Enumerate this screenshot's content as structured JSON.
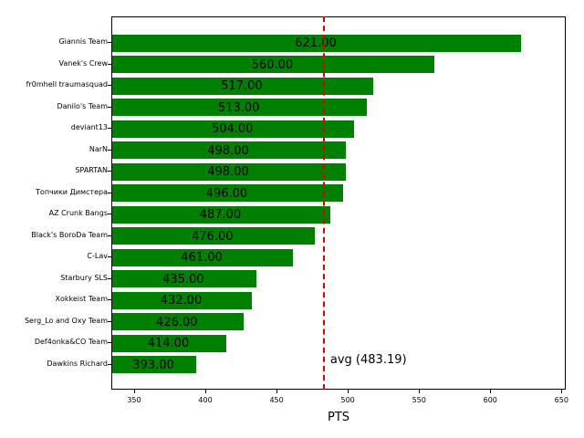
{
  "chart_data": {
    "type": "bar",
    "orientation": "horizontal",
    "title": "",
    "xlabel": "PTS",
    "ylabel": "",
    "xlim": [
      334,
      653
    ],
    "xticks": [
      350,
      400,
      450,
      500,
      550,
      600,
      650
    ],
    "grid": false,
    "bar_color": "#008000",
    "categories": [
      "Giannis Team",
      "Vanek's Crew",
      "fr0mhell traumasquad",
      "Danilo's Team",
      "deviant13",
      "NarN",
      "SPARTAN",
      "Топчики Димстера",
      "AZ Crunk Bangs",
      "Black's BoroDa Team",
      "C-Lav",
      "Starbury SLS",
      "Xokkeist Team",
      "Serg_Lo and Oxy Team",
      "Def4onka&CO Team",
      "Dawkins Richard"
    ],
    "values": [
      621,
      560,
      517,
      513,
      504,
      498,
      498,
      496,
      487,
      476,
      461,
      435,
      432,
      426,
      414,
      393
    ],
    "value_labels": [
      "621.00",
      "560.00",
      "517.00",
      "513.00",
      "504.00",
      "498.00",
      "498.00",
      "496.00",
      "487.00",
      "476.00",
      "461.00",
      "435.00",
      "432.00",
      "426.00",
      "414.00",
      "393.00"
    ],
    "reference_line": {
      "value": 483.19,
      "label": "avg (483.19)",
      "color": "#e00000",
      "style": "dashed"
    }
  }
}
